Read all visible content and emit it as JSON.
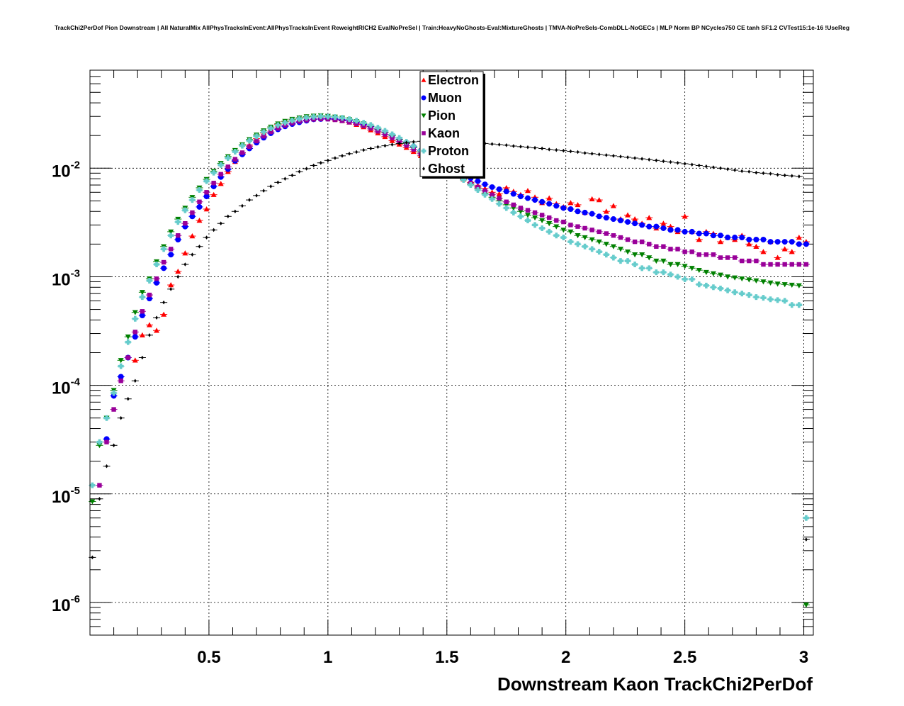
{
  "chart_data": {
    "type": "scatter",
    "title": "TrackChi2PerDof Pion Downstream | All NaturalMix AllPhysTracksInEvent:AllPhysTracksInEvent ReweightRICH2 EvalNoPreSel | Train:HeavyNoGhosts-Eval:MixtureGhosts | TMVA-NoPreSels-CombDLL-NoGECs | MLP Norm BP NCycles750 CE tanh SF1.2 CVTest15:1e-16 !UseReg",
    "xlabel": "Downstream Kaon TrackChi2PerDof",
    "ylabel": "",
    "xlim": [
      0.0,
      3.04
    ],
    "ylim": [
      5e-07,
      0.08
    ],
    "yscale": "log",
    "grid": true,
    "legend_position": "top-center",
    "x_ticks": [
      {
        "value": 0.5,
        "label": "0.5"
      },
      {
        "value": 1.0,
        "label": "1"
      },
      {
        "value": 1.5,
        "label": "1.5"
      },
      {
        "value": 2.0,
        "label": "2"
      },
      {
        "value": 2.5,
        "label": "2.5"
      },
      {
        "value": 3.0,
        "label": "3"
      }
    ],
    "y_ticks": [
      {
        "value": 1e-06,
        "base": "10",
        "exp": "-6"
      },
      {
        "value": 1e-05,
        "base": "10",
        "exp": "-5"
      },
      {
        "value": 0.0001,
        "base": "10",
        "exp": "-4"
      },
      {
        "value": 0.001,
        "base": "10",
        "exp": "-3"
      },
      {
        "value": 0.01,
        "base": "10",
        "exp": "-2"
      }
    ],
    "x": [
      0.01,
      0.04,
      0.07,
      0.1,
      0.13,
      0.16,
      0.19,
      0.22,
      0.25,
      0.28,
      0.31,
      0.34,
      0.37,
      0.4,
      0.43,
      0.46,
      0.49,
      0.52,
      0.55,
      0.58,
      0.61,
      0.64,
      0.67,
      0.7,
      0.73,
      0.76,
      0.79,
      0.82,
      0.85,
      0.88,
      0.91,
      0.94,
      0.97,
      1.0,
      1.03,
      1.06,
      1.09,
      1.12,
      1.15,
      1.18,
      1.21,
      1.24,
      1.27,
      1.3,
      1.33,
      1.36,
      1.39,
      1.42,
      1.45,
      1.48,
      1.51,
      1.54,
      1.57,
      1.6,
      1.63,
      1.66,
      1.69,
      1.72,
      1.75,
      1.78,
      1.81,
      1.84,
      1.87,
      1.9,
      1.93,
      1.96,
      1.99,
      2.02,
      2.05,
      2.08,
      2.11,
      2.14,
      2.17,
      2.2,
      2.23,
      2.26,
      2.29,
      2.32,
      2.35,
      2.38,
      2.41,
      2.44,
      2.47,
      2.5,
      2.53,
      2.56,
      2.59,
      2.62,
      2.65,
      2.68,
      2.71,
      2.74,
      2.77,
      2.8,
      2.83,
      2.86,
      2.89,
      2.92,
      2.95,
      2.98,
      3.01
    ],
    "series": [
      {
        "name": "Electron",
        "marker": "triangle-up",
        "color": "#ff0000",
        "values": [
          null,
          null,
          null,
          null,
          null,
          null,
          0.00017,
          0.00029,
          0.00036,
          0.00032,
          0.00045,
          0.00084,
          0.00112,
          0.00165,
          0.00237,
          0.0033,
          0.0042,
          0.0057,
          0.0072,
          0.0093,
          0.0115,
          0.0138,
          0.0163,
          0.0187,
          0.0211,
          0.0233,
          0.0253,
          0.0269,
          0.028,
          0.0291,
          0.0296,
          0.0299,
          0.0297,
          0.0291,
          0.0283,
          0.0275,
          0.0265,
          0.0252,
          0.024,
          0.0225,
          0.0211,
          0.0195,
          0.0179,
          0.0166,
          0.0155,
          0.0142,
          0.013,
          0.012,
          0.011,
          0.0101,
          0.0093,
          0.0086,
          0.0079,
          0.0074,
          0.0069,
          0.0065,
          0.006,
          0.0058,
          0.0066,
          0.0061,
          0.0057,
          0.0062,
          0.0054,
          0.0048,
          0.0053,
          0.0047,
          0.0044,
          0.0048,
          0.0046,
          0.0039,
          0.0052,
          0.0051,
          0.004,
          0.0045,
          0.0034,
          0.0037,
          0.0034,
          0.0031,
          0.0035,
          0.0028,
          0.0031,
          0.0029,
          0.0026,
          0.0036,
          0.0026,
          0.0022,
          0.0026,
          0.0025,
          0.0021,
          0.0023,
          0.0022,
          0.0024,
          0.002,
          0.0019,
          0.0017,
          0.0021,
          0.0015,
          0.0018,
          0.0017,
          0.0023,
          0.0021
        ]
      },
      {
        "name": "Muon",
        "marker": "circle",
        "color": "#0000ff",
        "values": [
          null,
          null,
          3.2e-05,
          8e-05,
          0.00012,
          0.00018,
          0.00028,
          0.00044,
          0.00063,
          0.00088,
          0.0012,
          0.0016,
          0.0022,
          0.0029,
          0.0036,
          0.0044,
          0.0055,
          0.0068,
          0.0083,
          0.0098,
          0.0117,
          0.0134,
          0.0152,
          0.0172,
          0.0191,
          0.021,
          0.0228,
          0.0243,
          0.0255,
          0.0265,
          0.0274,
          0.0282,
          0.0284,
          0.0286,
          0.0284,
          0.0279,
          0.0273,
          0.0264,
          0.0253,
          0.0242,
          0.0229,
          0.0215,
          0.02,
          0.0185,
          0.0171,
          0.0158,
          0.0145,
          0.0133,
          0.0122,
          0.0112,
          0.0102,
          0.0094,
          0.0087,
          0.0081,
          0.0076,
          0.0071,
          0.0067,
          0.0064,
          0.0061,
          0.0058,
          0.0055,
          0.0053,
          0.0051,
          0.0049,
          0.0047,
          0.0045,
          0.0043,
          0.0042,
          0.004,
          0.0039,
          0.0038,
          0.0036,
          0.0035,
          0.0034,
          0.0033,
          0.0032,
          0.0031,
          0.003,
          0.0029,
          0.0029,
          0.0028,
          0.0027,
          0.0027,
          0.0026,
          0.0026,
          0.0025,
          0.0025,
          0.0024,
          0.0024,
          0.0023,
          0.0023,
          0.0023,
          0.0022,
          0.0022,
          0.0022,
          0.0021,
          0.0021,
          0.0021,
          0.0021,
          0.002,
          0.002
        ]
      },
      {
        "name": "Pion",
        "marker": "triangle-down",
        "color": "#008000",
        "values": [
          8.5e-06,
          2.8e-05,
          5e-05,
          9e-05,
          0.00017,
          0.00028,
          0.00047,
          0.00072,
          0.00096,
          0.00138,
          0.0019,
          0.0026,
          0.0034,
          0.0043,
          0.0054,
          0.0066,
          0.0079,
          0.0094,
          0.0111,
          0.0128,
          0.0146,
          0.0165,
          0.0184,
          0.0203,
          0.0222,
          0.024,
          0.0257,
          0.0271,
          0.0283,
          0.0292,
          0.0299,
          0.0303,
          0.0305,
          0.0302,
          0.0297,
          0.029,
          0.0281,
          0.027,
          0.0258,
          0.0244,
          0.023,
          0.0215,
          0.0199,
          0.0184,
          0.0169,
          0.0155,
          0.0141,
          0.0128,
          0.0116,
          0.0105,
          0.0095,
          0.0086,
          0.0078,
          0.0071,
          0.0065,
          0.0059,
          0.0054,
          0.005,
          0.0046,
          0.0043,
          0.004,
          0.0037,
          0.0035,
          0.0033,
          0.0031,
          0.0029,
          0.0027,
          0.0026,
          0.0024,
          0.0023,
          0.0022,
          0.0021,
          0.002,
          0.0019,
          0.0018,
          0.0017,
          0.0016,
          0.0016,
          0.0015,
          0.0014,
          0.0014,
          0.0013,
          0.0013,
          0.00125,
          0.0012,
          0.00115,
          0.0011,
          0.00107,
          0.00104,
          0.001,
          0.00098,
          0.00096,
          0.00094,
          0.00092,
          0.0009,
          0.00088,
          0.00086,
          0.00085,
          0.00084,
          0.00083,
          9.5e-07
        ]
      },
      {
        "name": "Kaon",
        "marker": "square",
        "color": "#990099",
        "values": [
          null,
          1.2e-05,
          3e-05,
          6e-05,
          0.00011,
          0.00018,
          0.00031,
          0.00048,
          0.00068,
          0.00096,
          0.00136,
          0.0018,
          0.0024,
          0.0031,
          0.0039,
          0.0049,
          0.006,
          0.0073,
          0.0088,
          0.0103,
          0.0121,
          0.0139,
          0.0158,
          0.0178,
          0.0197,
          0.0216,
          0.0233,
          0.0248,
          0.026,
          0.027,
          0.0277,
          0.0282,
          0.0284,
          0.0283,
          0.0279,
          0.0273,
          0.0265,
          0.0256,
          0.0245,
          0.0233,
          0.0219,
          0.0205,
          0.019,
          0.0176,
          0.0162,
          0.0149,
          0.0136,
          0.0125,
          0.0114,
          0.0104,
          0.0095,
          0.0087,
          0.008,
          0.0073,
          0.0067,
          0.0062,
          0.0057,
          0.0053,
          0.0049,
          0.0046,
          0.0043,
          0.0041,
          0.0039,
          0.0037,
          0.0035,
          0.0033,
          0.0032,
          0.003,
          0.0029,
          0.0028,
          0.0027,
          0.0026,
          0.0025,
          0.0024,
          0.0023,
          0.0022,
          0.0021,
          0.0021,
          0.002,
          0.0019,
          0.0019,
          0.0018,
          0.0018,
          0.0017,
          0.0017,
          0.0016,
          0.0016,
          0.0016,
          0.0015,
          0.0015,
          0.0015,
          0.0014,
          0.0014,
          0.0014,
          0.0013,
          0.0013,
          0.0013,
          0.0013,
          0.0013,
          0.0013,
          0.0013
        ]
      },
      {
        "name": "Proton",
        "marker": "cross",
        "color": "#66cccc",
        "values": [
          1.2e-05,
          3e-05,
          5e-05,
          8.5e-05,
          0.00015,
          0.00025,
          0.00041,
          0.00065,
          0.00092,
          0.0013,
          0.0018,
          0.0024,
          0.0032,
          0.0041,
          0.0051,
          0.0063,
          0.0076,
          0.0091,
          0.0107,
          0.0124,
          0.0142,
          0.0161,
          0.0179,
          0.0197,
          0.0215,
          0.0233,
          0.0249,
          0.0263,
          0.0275,
          0.0285,
          0.0292,
          0.0297,
          0.03,
          0.0299,
          0.0296,
          0.0291,
          0.0283,
          0.0274,
          0.0262,
          0.025,
          0.0236,
          0.0221,
          0.0205,
          0.019,
          0.0175,
          0.016,
          0.0146,
          0.0133,
          0.012,
          0.0108,
          0.0097,
          0.0087,
          0.0078,
          0.007,
          0.0063,
          0.0057,
          0.0052,
          0.0047,
          0.0043,
          0.0039,
          0.0036,
          0.0033,
          0.003,
          0.0028,
          0.0026,
          0.0024,
          0.0023,
          0.0021,
          0.002,
          0.0019,
          0.0018,
          0.0017,
          0.0016,
          0.0015,
          0.0014,
          0.0014,
          0.0013,
          0.0012,
          0.0012,
          0.0011,
          0.0011,
          0.00105,
          0.001,
          0.00095,
          0.00095,
          0.00085,
          0.00083,
          0.0008,
          0.00078,
          0.00075,
          0.00072,
          0.0007,
          0.00068,
          0.00065,
          0.00064,
          0.00062,
          0.00061,
          0.0006,
          0.00055,
          0.00055,
          6e-06
        ]
      },
      {
        "name": "Ghost",
        "marker": "diamond",
        "color": "#000000",
        "values": [
          2.6e-06,
          9e-06,
          1.8e-05,
          2.8e-05,
          5e-05,
          7.5e-05,
          0.00011,
          0.00018,
          0.00029,
          0.00042,
          0.00058,
          0.00077,
          0.001,
          0.0013,
          0.0016,
          0.0019,
          0.0023,
          0.0027,
          0.0031,
          0.0036,
          0.004,
          0.0045,
          0.0051,
          0.0056,
          0.0062,
          0.0068,
          0.0074,
          0.008,
          0.0086,
          0.0093,
          0.0099,
          0.0106,
          0.0112,
          0.0118,
          0.0124,
          0.013,
          0.0136,
          0.0141,
          0.0147,
          0.0152,
          0.0157,
          0.0161,
          0.0165,
          0.0169,
          0.0172,
          0.0175,
          0.0177,
          0.0178,
          0.0178,
          0.0178,
          0.0177,
          0.0176,
          0.0175,
          0.0173,
          0.0171,
          0.0169,
          0.0167,
          0.0165,
          0.0163,
          0.016,
          0.0158,
          0.0156,
          0.0154,
          0.0152,
          0.0149,
          0.0147,
          0.0145,
          0.0143,
          0.0141,
          0.0138,
          0.0136,
          0.0134,
          0.0132,
          0.013,
          0.0128,
          0.0126,
          0.0124,
          0.0122,
          0.012,
          0.0118,
          0.0116,
          0.0114,
          0.0112,
          0.011,
          0.0108,
          0.0106,
          0.0104,
          0.0102,
          0.01,
          0.0098,
          0.0096,
          0.0094,
          0.0093,
          0.0091,
          0.009,
          0.0089,
          0.0087,
          0.0086,
          0.0085,
          0.0084,
          3.8e-06
        ]
      }
    ]
  }
}
